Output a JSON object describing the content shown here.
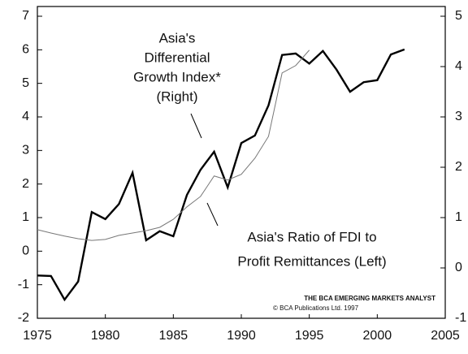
{
  "chart_data": {
    "type": "line",
    "xlim": [
      1975,
      2005
    ],
    "xticks": [
      1975,
      1980,
      1985,
      1990,
      1995,
      2000,
      2005
    ],
    "ylim": [
      -2,
      7
    ],
    "yticks": [
      -2,
      -1,
      0,
      1,
      2,
      3,
      4,
      5,
      6,
      7
    ],
    "y2lim": [
      -1,
      5
    ],
    "y2ticks": [
      -1,
      0,
      1,
      2,
      3,
      4,
      5
    ],
    "series": [
      {
        "name": "Asia's Differential Growth Index* (Right)",
        "color": "#000000",
        "width": 2.4,
        "axis": "y2",
        "x": [
          1975,
          1976,
          1977,
          1978,
          1979,
          1980,
          1981,
          1982,
          1983,
          1984,
          1985,
          1986,
          1987,
          1988,
          1989,
          1990,
          1991,
          1992,
          1993,
          1994,
          1995,
          1996,
          1997,
          1998,
          1999,
          2000,
          2001,
          2002
        ],
        "values": [
          -0.15,
          -0.16,
          -0.63,
          -0.27,
          1.11,
          0.97,
          1.27,
          1.89,
          0.55,
          0.73,
          0.63,
          1.45,
          1.95,
          2.31,
          1.6,
          2.48,
          2.63,
          3.23,
          4.23,
          4.26,
          4.06,
          4.31,
          3.94,
          3.5,
          3.69,
          3.73,
          4.24,
          4.34
        ]
      },
      {
        "name": "Asia's Ratio of FDI to Profit Remittances (Left)",
        "color": "#777777",
        "width": 1,
        "axis": "y",
        "x": [
          1975,
          1976,
          1977,
          1978,
          1979,
          1980,
          1981,
          1982,
          1983,
          1984,
          1985,
          1986,
          1987,
          1988,
          1989,
          1990,
          1991,
          1992,
          1993,
          1994,
          1995
        ],
        "values": [
          0.64,
          0.54,
          0.45,
          0.37,
          0.32,
          0.35,
          0.47,
          0.54,
          0.61,
          0.71,
          0.95,
          1.32,
          1.63,
          2.24,
          2.12,
          2.29,
          2.77,
          3.42,
          5.31,
          5.53,
          5.99
        ]
      }
    ],
    "annotations": [
      {
        "lines": [
          "Asia's",
          "Differential",
          "Growth Index*",
          "(Right)"
        ]
      },
      {
        "lines": [
          "Asia's Ratio of FDI to",
          "Profit Remittances (Left)"
        ]
      }
    ],
    "source": [
      "THE BCA EMERGING MARKETS ANALYST",
      "© BCA Publications Ltd. 1997"
    ]
  }
}
